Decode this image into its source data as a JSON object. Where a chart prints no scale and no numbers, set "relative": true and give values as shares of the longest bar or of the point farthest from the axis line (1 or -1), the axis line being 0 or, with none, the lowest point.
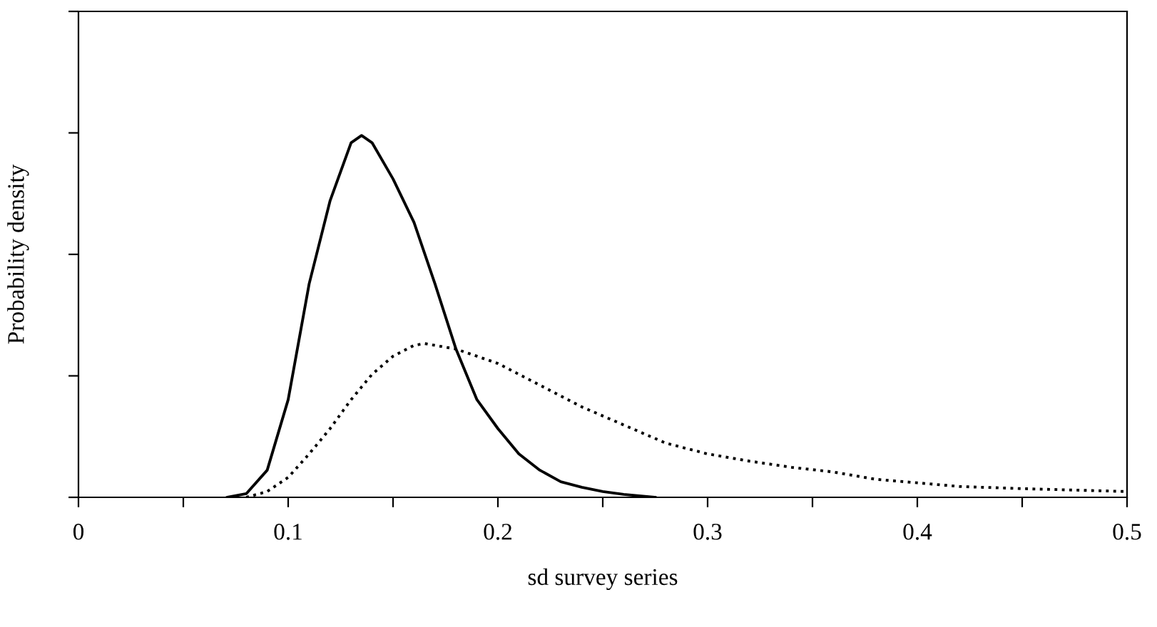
{
  "chart_data": {
    "type": "line",
    "relative": true,
    "xlabel": "sd survey series",
    "ylabel": "Probability density",
    "xlim": [
      0,
      0.5
    ],
    "xticks": [
      0,
      {
        "value": 0.05,
        "label": null
      },
      0.1,
      {
        "value": 0.15,
        "label": null
      },
      0.2,
      {
        "value": 0.25,
        "label": null
      },
      0.3,
      {
        "value": 0.35,
        "label": null
      },
      0.4,
      {
        "value": 0.45,
        "label": null
      },
      0.5
    ],
    "grid": false,
    "legend": false,
    "marker": "none",
    "series": [
      {
        "color": "#000000",
        "line_style": "solid",
        "x": [
          0.071,
          0.08,
          0.09,
          0.1,
          0.11,
          0.12,
          0.13,
          0.135,
          0.14,
          0.15,
          0.16,
          0.17,
          0.18,
          0.19,
          0.2,
          0.21,
          0.22,
          0.23,
          0.24,
          0.25,
          0.26,
          0.275
        ],
        "values": [
          0,
          0.01,
          0.075,
          0.27,
          0.59,
          0.82,
          0.98,
          1.0,
          0.98,
          0.88,
          0.76,
          0.59,
          0.41,
          0.27,
          0.19,
          0.12,
          0.075,
          0.043,
          0.028,
          0.016,
          0.008,
          0
        ]
      },
      {
        "color": "#000000",
        "line_style": "dotted",
        "x": [
          0.08,
          0.09,
          0.1,
          0.11,
          0.12,
          0.13,
          0.14,
          0.15,
          0.16,
          0.165,
          0.17,
          0.18,
          0.19,
          0.2,
          0.22,
          0.24,
          0.26,
          0.28,
          0.3,
          0.32,
          0.34,
          0.36,
          0.38,
          0.4,
          0.42,
          0.45,
          0.5
        ],
        "values": [
          0,
          0.016,
          0.055,
          0.12,
          0.19,
          0.27,
          0.34,
          0.39,
          0.42,
          0.425,
          0.42,
          0.41,
          0.39,
          0.37,
          0.31,
          0.25,
          0.2,
          0.15,
          0.12,
          0.1,
          0.083,
          0.07,
          0.05,
          0.04,
          0.03,
          0.024,
          0.016
        ]
      }
    ]
  }
}
